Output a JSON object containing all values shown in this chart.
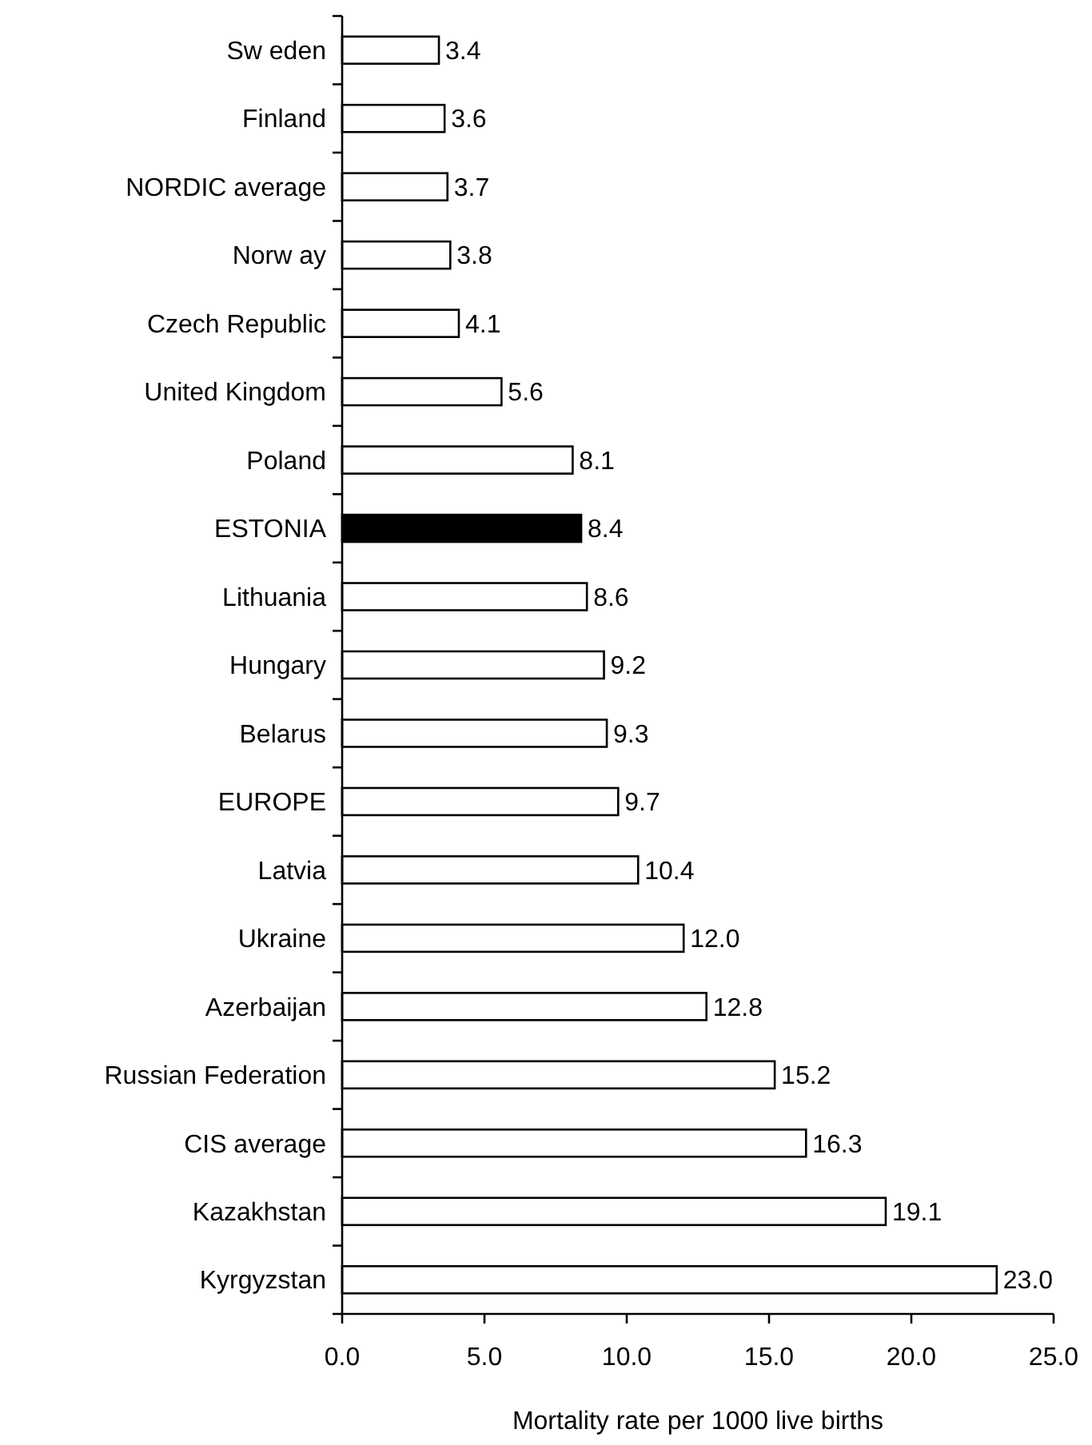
{
  "chart_data": {
    "type": "bar",
    "orientation": "horizontal",
    "xlabel": "Mortality rate per 1000 live births",
    "categories": [
      "Sw eden",
      "Finland",
      "NORDIC average",
      "Norw ay",
      "Czech Republic",
      "United Kingdom",
      "Poland",
      "ESTONIA",
      "Lithuania",
      "Hungary",
      "Belarus",
      "EUROPE",
      "Latvia",
      "Ukraine",
      "Azerbaijan",
      "Russian Federation",
      "CIS average",
      "Kazakhstan",
      "Kyrgyzstan"
    ],
    "values": [
      3.4,
      3.6,
      3.7,
      3.8,
      4.1,
      5.6,
      8.1,
      8.4,
      8.6,
      9.2,
      9.3,
      9.7,
      10.4,
      12.0,
      12.8,
      15.2,
      16.3,
      19.1,
      23.0
    ],
    "value_labels": [
      "3.4",
      "3.6",
      "3.7",
      "3.8",
      "4.1",
      "5.6",
      "8.1",
      "8.4",
      "8.6",
      "9.2",
      "9.3",
      "9.7",
      "10.4",
      "12.0",
      "12.8",
      "15.2",
      "16.3",
      "19.1",
      "23.0"
    ],
    "colors": [
      "#ffffff",
      "#ffffff",
      "#ffffff",
      "#ffffff",
      "#ffffff",
      "#ffffff",
      "#ffffff",
      "#000000",
      "#ffffff",
      "#ffffff",
      "#ffffff",
      "#ffffff",
      "#ffffff",
      "#ffffff",
      "#ffffff",
      "#ffffff",
      "#ffffff",
      "#ffffff",
      "#ffffff"
    ],
    "xlim": [
      0,
      25
    ],
    "xticks": [
      {
        "value": 0,
        "label": "0.0"
      },
      {
        "value": 5,
        "label": "5.0"
      },
      {
        "value": 10,
        "label": "10.0"
      },
      {
        "value": 15,
        "label": "15.0"
      },
      {
        "value": 20,
        "label": "20.0"
      },
      {
        "value": 25,
        "label": "25.0"
      }
    ],
    "grid": false
  }
}
